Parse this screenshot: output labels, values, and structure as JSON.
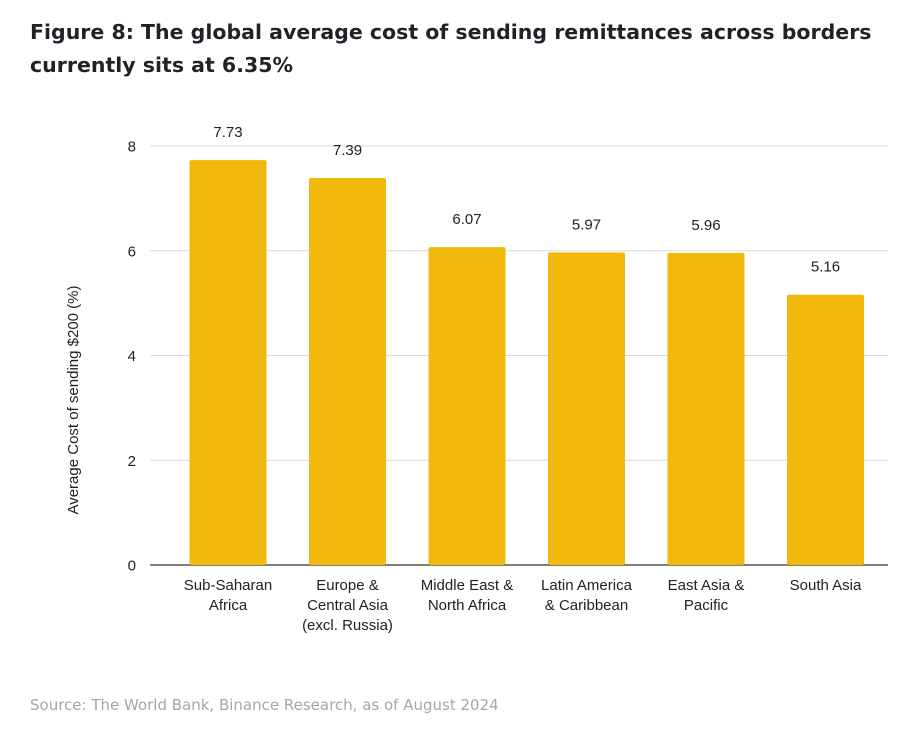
{
  "title": "Figure 8: The global average cost of sending remittances across borders currently sits at 6.35%",
  "source": "Source: The World Bank, Binance Research, as of August 2024",
  "colors": {
    "bar": "#f0b90b",
    "grid": "#d9d9d9",
    "axis": "#333333",
    "title": "#1e2329",
    "source": "#a3a7ad"
  },
  "chart_data": {
    "type": "bar",
    "title": "The global average cost of sending remittances across borders currently sits at 6.35%",
    "xlabel": "",
    "ylabel": "Average Cost of sending $200 (%)",
    "ylim": [
      0,
      8
    ],
    "yticks": [
      0,
      2,
      4,
      6,
      8
    ],
    "grid": true,
    "categories": [
      [
        "Sub-Saharan",
        "Africa"
      ],
      [
        "Europe &",
        "Central Asia",
        "(excl. Russia)"
      ],
      [
        "Middle East &",
        "North Africa"
      ],
      [
        "Latin America",
        "& Caribbean"
      ],
      [
        "East Asia &",
        "Pacific"
      ],
      [
        "South Asia"
      ]
    ],
    "values": [
      7.73,
      7.39,
      6.07,
      5.97,
      5.96,
      5.16
    ],
    "value_labels": [
      "7.73",
      "7.39",
      "6.07",
      "5.97",
      "5.96",
      "5.16"
    ]
  }
}
